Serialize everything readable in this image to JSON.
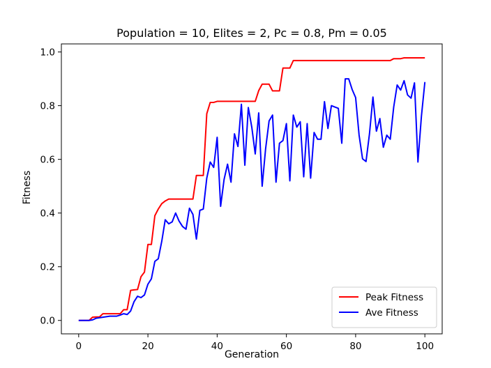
{
  "chart_data": {
    "type": "line",
    "title": "Population = 10, Elites = 2, Pc = 0.8, Pm = 0.05",
    "xlabel": "Generation",
    "ylabel": "Fitness",
    "xlim": [
      -5,
      105
    ],
    "ylim": [
      -0.05,
      1.03
    ],
    "xticks": [
      0,
      20,
      40,
      60,
      80,
      100
    ],
    "yticks": [
      0.0,
      0.2,
      0.4,
      0.6,
      0.8,
      1.0
    ],
    "xtick_labels": [
      "0",
      "20",
      "40",
      "60",
      "80",
      "100"
    ],
    "ytick_labels": [
      "0.0",
      "0.2",
      "0.4",
      "0.6",
      "0.8",
      "1.0"
    ],
    "grid": false,
    "legend": {
      "placement": "lower-right"
    },
    "series": [
      {
        "name": "Peak Fitness",
        "color": "#ff0000",
        "x": [
          0,
          1,
          2,
          3,
          4,
          5,
          6,
          7,
          8,
          9,
          10,
          11,
          12,
          13,
          14,
          15,
          16,
          17,
          18,
          19,
          20,
          21,
          22,
          23,
          24,
          25,
          26,
          27,
          28,
          29,
          30,
          31,
          32,
          33,
          34,
          35,
          36,
          37,
          38,
          39,
          40,
          41,
          42,
          43,
          44,
          45,
          46,
          47,
          48,
          49,
          50,
          51,
          52,
          53,
          54,
          55,
          56,
          57,
          58,
          59,
          60,
          61,
          62,
          63,
          64,
          65,
          66,
          67,
          68,
          69,
          70,
          71,
          72,
          73,
          74,
          75,
          76,
          77,
          78,
          79,
          80,
          81,
          82,
          83,
          84,
          85,
          86,
          87,
          88,
          89,
          90,
          91,
          92,
          93,
          94,
          95,
          96,
          97,
          98,
          99,
          100
        ],
        "y": [
          0,
          0,
          0,
          0,
          0.012,
          0.013,
          0.013,
          0.025,
          0.025,
          0.025,
          0.025,
          0.025,
          0.025,
          0.04,
          0.04,
          0.112,
          0.114,
          0.115,
          0.163,
          0.18,
          0.283,
          0.283,
          0.39,
          0.415,
          0.435,
          0.445,
          0.452,
          0.452,
          0.452,
          0.452,
          0.452,
          0.452,
          0.452,
          0.452,
          0.54,
          0.54,
          0.54,
          0.77,
          0.812,
          0.812,
          0.816,
          0.816,
          0.816,
          0.816,
          0.816,
          0.816,
          0.816,
          0.816,
          0.816,
          0.816,
          0.816,
          0.816,
          0.856,
          0.88,
          0.88,
          0.88,
          0.855,
          0.855,
          0.855,
          0.94,
          0.94,
          0.94,
          0.968,
          0.968,
          0.968,
          0.968,
          0.968,
          0.968,
          0.968,
          0.968,
          0.968,
          0.968,
          0.968,
          0.968,
          0.968,
          0.968,
          0.968,
          0.968,
          0.968,
          0.968,
          0.968,
          0.968,
          0.968,
          0.968,
          0.968,
          0.968,
          0.968,
          0.968,
          0.968,
          0.968,
          0.968,
          0.975,
          0.975,
          0.975,
          0.978,
          0.978,
          0.978,
          0.978,
          0.978,
          0.978,
          0.978
        ]
      },
      {
        "name": "Ave Fitness",
        "color": "#0000ff",
        "x": [
          0,
          1,
          2,
          3,
          4,
          5,
          6,
          7,
          8,
          9,
          10,
          11,
          12,
          13,
          14,
          15,
          16,
          17,
          18,
          19,
          20,
          21,
          22,
          23,
          24,
          25,
          26,
          27,
          28,
          29,
          30,
          31,
          32,
          33,
          34,
          35,
          36,
          37,
          38,
          39,
          40,
          41,
          42,
          43,
          44,
          45,
          46,
          47,
          48,
          49,
          50,
          51,
          52,
          53,
          54,
          55,
          56,
          57,
          58,
          59,
          60,
          61,
          62,
          63,
          64,
          65,
          66,
          67,
          68,
          69,
          70,
          71,
          72,
          73,
          74,
          75,
          76,
          77,
          78,
          79,
          80,
          81,
          82,
          83,
          84,
          85,
          86,
          87,
          88,
          89,
          90,
          91,
          92,
          93,
          94,
          95,
          96,
          97,
          98,
          99,
          100
        ],
        "y": [
          0,
          0,
          0,
          0,
          0.002,
          0.008,
          0.01,
          0.012,
          0.014,
          0.016,
          0.016,
          0.016,
          0.02,
          0.025,
          0.022,
          0.035,
          0.07,
          0.09,
          0.085,
          0.095,
          0.135,
          0.155,
          0.22,
          0.23,
          0.295,
          0.375,
          0.36,
          0.367,
          0.4,
          0.37,
          0.35,
          0.34,
          0.418,
          0.395,
          0.303,
          0.41,
          0.415,
          0.53,
          0.59,
          0.57,
          0.682,
          0.425,
          0.525,
          0.582,
          0.515,
          0.695,
          0.648,
          0.805,
          0.578,
          0.793,
          0.72,
          0.62,
          0.773,
          0.5,
          0.64,
          0.743,
          0.765,
          0.515,
          0.66,
          0.67,
          0.733,
          0.52,
          0.765,
          0.72,
          0.74,
          0.535,
          0.733,
          0.53,
          0.7,
          0.675,
          0.675,
          0.815,
          0.715,
          0.8,
          0.795,
          0.79,
          0.66,
          0.9,
          0.9,
          0.86,
          0.83,
          0.69,
          0.602,
          0.592,
          0.695,
          0.832,
          0.705,
          0.752,
          0.645,
          0.69,
          0.675,
          0.795,
          0.877,
          0.858,
          0.893,
          0.84,
          0.828,
          0.885,
          0.59,
          0.76,
          0.888
        ]
      }
    ]
  }
}
